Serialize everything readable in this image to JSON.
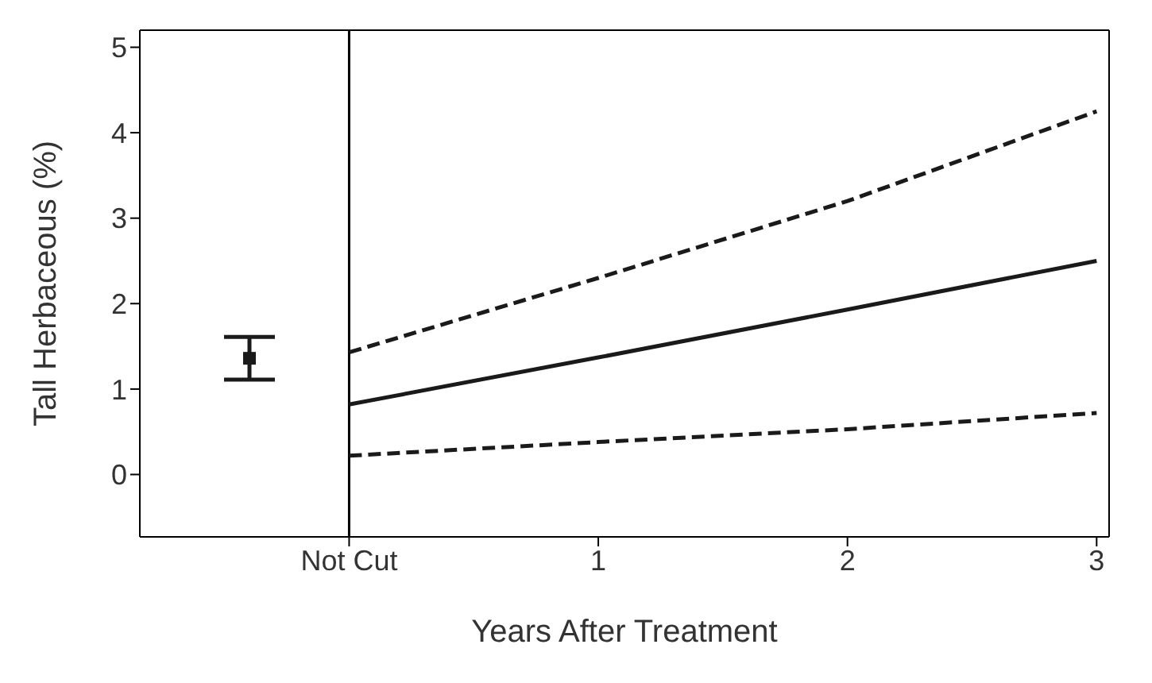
{
  "chart_data": {
    "type": "line",
    "xlabel": "Years After Treatment",
    "ylabel": "Tall Herbaceous (%)",
    "xlim": [
      -0.84,
      3.05
    ],
    "xticks": [
      {
        "value": 0,
        "label": "Not Cut"
      },
      1,
      2,
      3
    ],
    "ylim": [
      -0.73,
      5.2
    ],
    "yticks": [
      0,
      1,
      2,
      3,
      4,
      5
    ],
    "ref_lines": [
      {
        "axis": "x",
        "value": 0,
        "color": "#000000"
      }
    ],
    "series": [
      {
        "type": "scatter",
        "color": "#1a1a1a",
        "x": [
          -0.4
        ],
        "values": [
          1.36
        ],
        "errors": [
          [
            1.11,
            1.61
          ]
        ],
        "marker": "square"
      },
      {
        "color": "#1a1a1a",
        "x": [
          0,
          1,
          2,
          3
        ],
        "values": [
          0.82,
          1.37,
          1.93,
          2.5
        ],
        "line_style": "solid",
        "marker": "none"
      },
      {
        "color": "#1a1a1a",
        "x": [
          0,
          1,
          2,
          3
        ],
        "values": [
          1.43,
          2.3,
          3.2,
          4.25
        ],
        "line_style": "dashed",
        "marker": "none"
      },
      {
        "color": "#1a1a1a",
        "x": [
          0,
          1,
          2,
          3
        ],
        "values": [
          0.22,
          0.38,
          0.53,
          0.72
        ],
        "line_style": "dashed",
        "marker": "none"
      }
    ]
  }
}
